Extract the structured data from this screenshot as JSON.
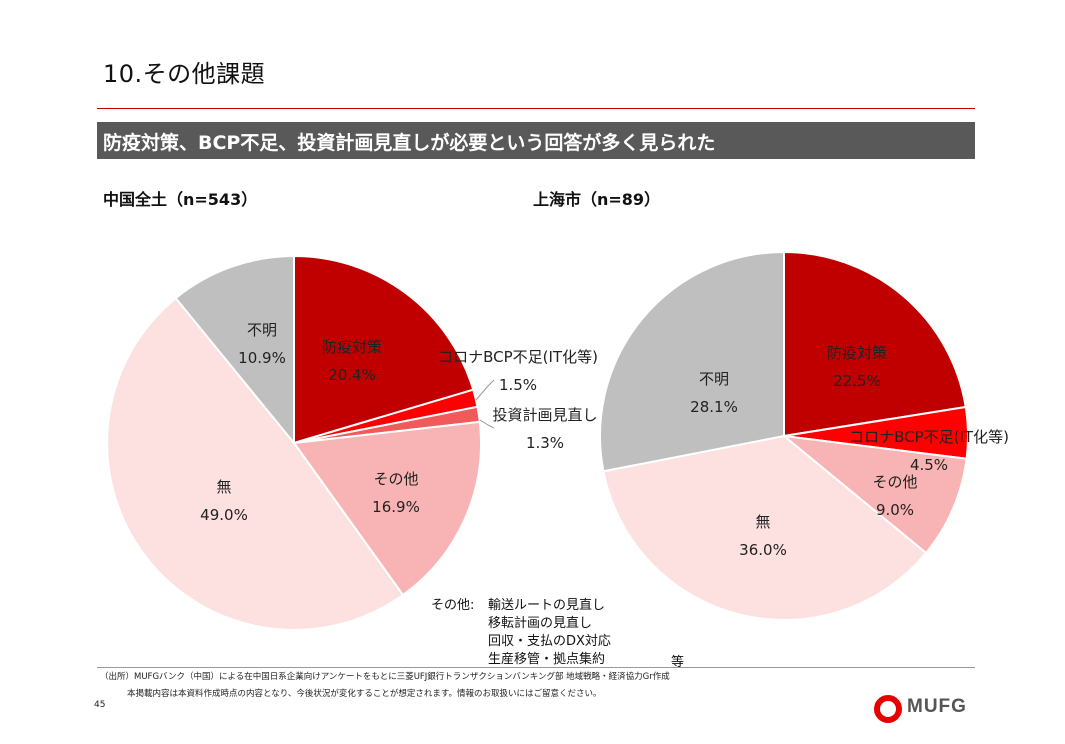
{
  "title": "10.その他課題",
  "banner": "防疫対策、BCP不足、投資計画見直しが必要という回答が多く見られた",
  "chart_data": [
    {
      "type": "pie",
      "subtitle": "中国全土（n=543）",
      "slices": [
        {
          "label": "防疫対策",
          "value": 20.4,
          "value_text": "20.4%",
          "color": "#c00000"
        },
        {
          "label": "コロナBCP不足(IT化等)",
          "value": 1.5,
          "value_text": "1.5%",
          "color": "#ff0000"
        },
        {
          "label": "投資計画見直し",
          "value": 1.3,
          "value_text": "1.3%",
          "color": "#f05a5a"
        },
        {
          "label": "その他",
          "value": 16.9,
          "value_text": "16.9%",
          "color": "#f8b4b4"
        },
        {
          "label": "無",
          "value": 49.0,
          "value_text": "49.0%",
          "color": "#fde0e0"
        },
        {
          "label": "不明",
          "value": 10.9,
          "value_text": "10.9%",
          "color": "#bfbfbf"
        }
      ]
    },
    {
      "type": "pie",
      "subtitle": "上海市（n=89）",
      "slices": [
        {
          "label": "防疫対策",
          "value": 22.5,
          "value_text": "22.5%",
          "color": "#c00000"
        },
        {
          "label": "コロナBCP不足(IT化等)",
          "value": 4.5,
          "value_text": "4.5%",
          "color": "#ff0000"
        },
        {
          "label": "その他",
          "value": 9.0,
          "value_text": "9.0%",
          "color": "#f8b4b4"
        },
        {
          "label": "無",
          "value": 36.0,
          "value_text": "36.0%",
          "color": "#fde0e0"
        },
        {
          "label": "不明",
          "value": 28.1,
          "value_text": "28.1%",
          "color": "#bfbfbf"
        }
      ]
    }
  ],
  "note": {
    "label": "その他:",
    "items": [
      "輸送ルートの見直し",
      "移転計画の見直し",
      "回収・支払のDX対応",
      "生産移管・拠点集約"
    ],
    "etc": "等"
  },
  "footer": {
    "source": "（出所）MUFGバンク（中国）による在中国日系企業向けアンケートをもとに三菱UFJ銀行トランザクションバンキング部 地域戦略・経済協力Gr作成",
    "disclaimer": "本掲載内容は本資料作成時点の内容となり、今後状況が変化することが想定されます。情報のお取扱いにはご留意ください。",
    "page_number": "45",
    "logo_text": "MUFG"
  }
}
